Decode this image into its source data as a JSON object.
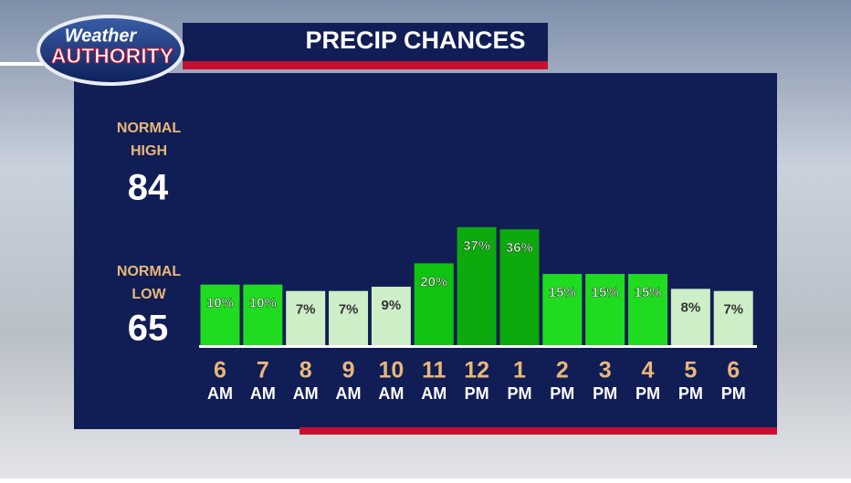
{
  "header": {
    "logo_top": "Weather",
    "logo_bottom": "AUTHORITY",
    "title": "PRECIP CHANCES"
  },
  "normals": {
    "high_label": [
      "NORMAL",
      "HIGH"
    ],
    "high": "84",
    "low_label": [
      "NORMAL",
      "LOW"
    ],
    "low": "65"
  },
  "chart_data": {
    "type": "bar",
    "categories": [
      [
        "6",
        "AM"
      ],
      [
        "7",
        "AM"
      ],
      [
        "8",
        "AM"
      ],
      [
        "9",
        "AM"
      ],
      [
        "10",
        "AM"
      ],
      [
        "11",
        "AM"
      ],
      [
        "12",
        "PM"
      ],
      [
        "1",
        "PM"
      ],
      [
        "2",
        "PM"
      ],
      [
        "3",
        "PM"
      ],
      [
        "4",
        "PM"
      ],
      [
        "5",
        "PM"
      ],
      [
        "6",
        "PM"
      ]
    ],
    "values": [
      10,
      10,
      7,
      7,
      9,
      20,
      37,
      36,
      15,
      15,
      15,
      8,
      7
    ],
    "value_labels": [
      "10%",
      "10%",
      "7%",
      "7%",
      "9%",
      "20%",
      "37%",
      "36%",
      "15%",
      "15%",
      "15%",
      "8%",
      "7%"
    ],
    "colors": [
      "#20dc20",
      "#20dc20",
      "#cdeec6",
      "#cdeec6",
      "#cdeec6",
      "#11c411",
      "#0caa0c",
      "#0caa0c",
      "#20dc20",
      "#20dc20",
      "#20dc20",
      "#cdeec6",
      "#cdeec6"
    ]
  }
}
